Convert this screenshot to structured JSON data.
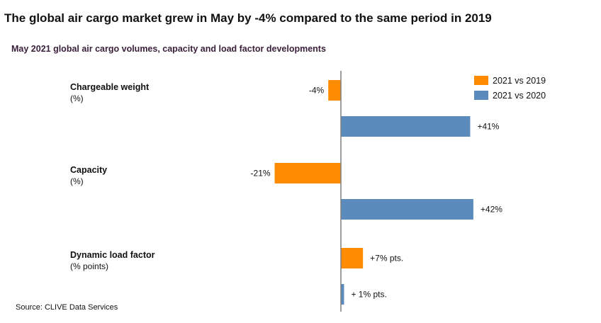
{
  "header": {
    "title": "The global air cargo market grew in May by -4% compared to the same period in 2019",
    "subtitle": "May 2021 global air cargo volumes, capacity and load factor developments"
  },
  "footer": {
    "source": "Source: CLIVE Data Services"
  },
  "colors": {
    "series_2019": "#ff8c00",
    "series_2020": "#5b8bbd",
    "axis": "#7f7f7f"
  },
  "chart_data": {
    "type": "bar",
    "orientation": "horizontal",
    "title": "May 2021 global air cargo volumes, capacity and load factor developments",
    "categories": [
      {
        "name": "Chargeable weight",
        "unit": "(%)"
      },
      {
        "name": "Capacity",
        "unit": "(%)"
      },
      {
        "name": "Dynamic load factor",
        "unit": "(% points)"
      }
    ],
    "series": [
      {
        "name": "2021 vs 2019",
        "values": [
          -4,
          -21,
          7
        ],
        "labels": [
          "-4%",
          "-21%",
          "+7% pts."
        ]
      },
      {
        "name": "2021 vs 2020",
        "values": [
          41,
          42,
          1
        ],
        "labels": [
          "+41%",
          "+42%",
          "+ 1% pts."
        ]
      }
    ],
    "legend": "top-right",
    "grid": false
  }
}
